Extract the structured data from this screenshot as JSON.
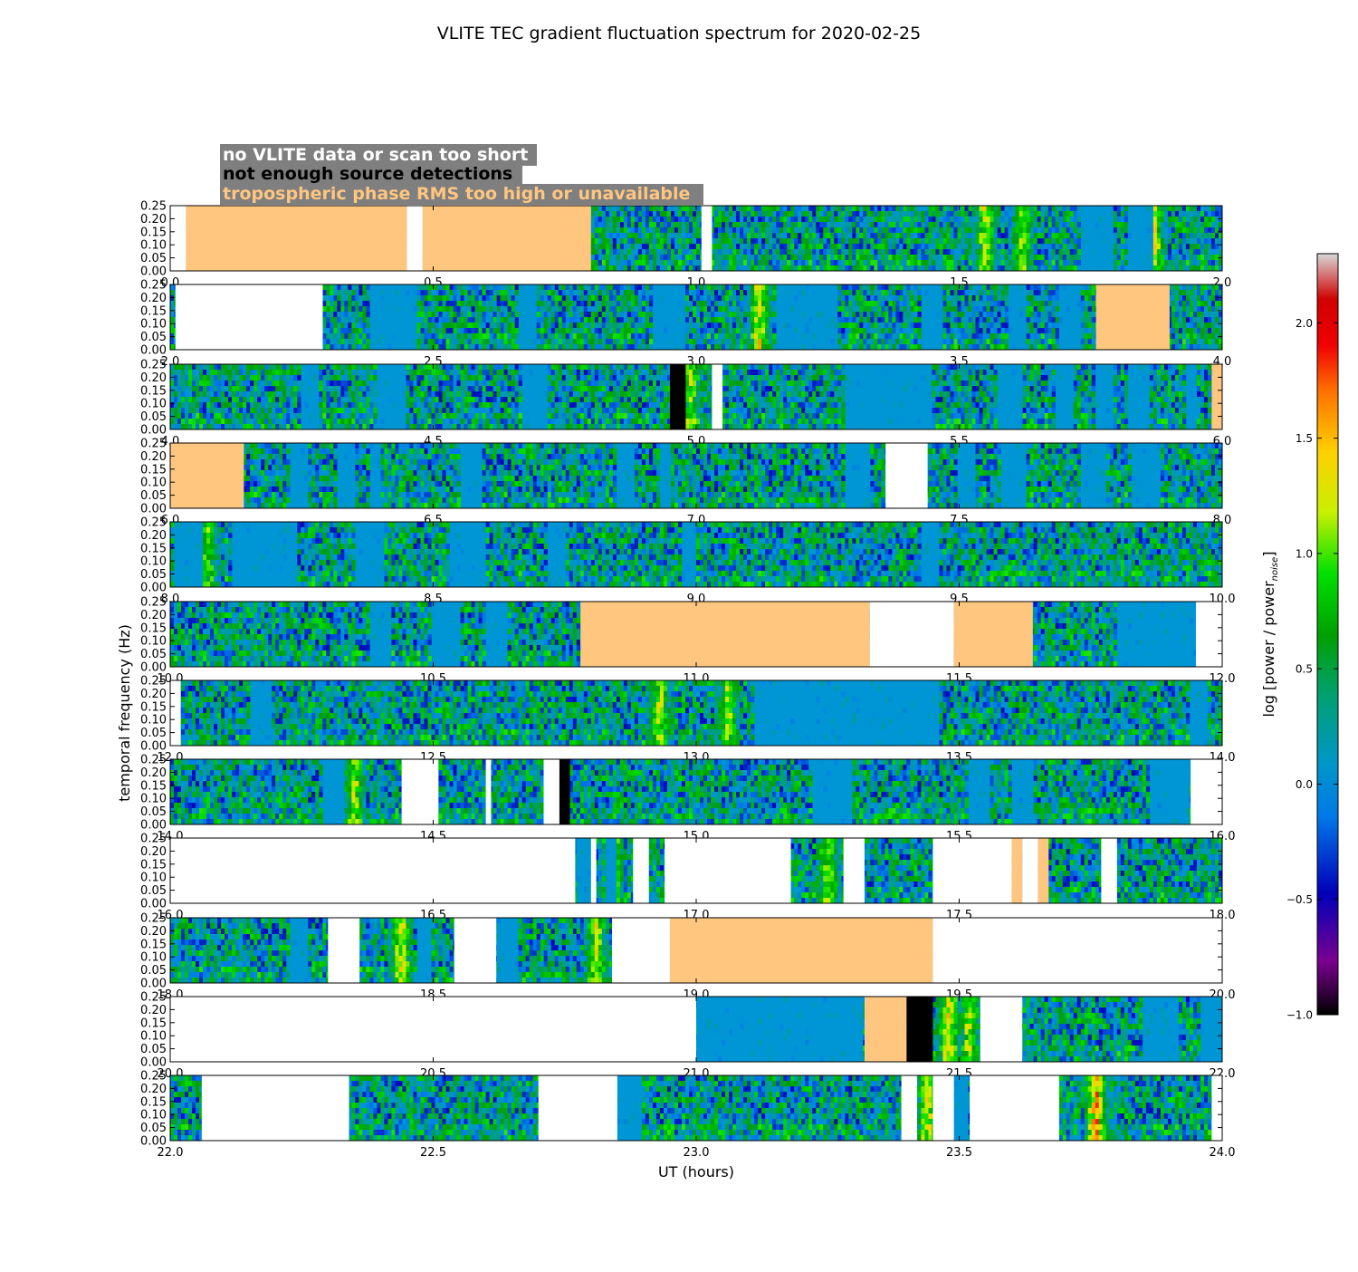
{
  "chart_data": {
    "type": "heatmap",
    "title": "VLITE TEC gradient fluctuation spectrum for 2020-02-25",
    "xlabel": "UT (hours)",
    "ylabel": "temporal frequency (Hz)",
    "ylim": [
      0,
      0.25
    ],
    "yticks": [
      "0.00",
      "0.05",
      "0.10",
      "0.15",
      "0.20",
      "0.25"
    ],
    "colorbar": {
      "label": "log [power / power_noise]",
      "range": [
        -1.0,
        2.3
      ],
      "ticks": [
        "−1.0",
        "−0.5",
        "0.0",
        "0.5",
        "1.0",
        "1.5",
        "2.0"
      ],
      "tick_values": [
        -1.0,
        -0.5,
        0.0,
        0.5,
        1.0,
        1.5,
        2.0
      ]
    },
    "legend": {
      "position": "top-left",
      "entries": [
        {
          "label": "no VLITE data or scan too short",
          "color": "#ffffff"
        },
        {
          "label": "not enough source detections",
          "color": "#000000"
        },
        {
          "label": "tropospheric phase RMS too high or unavailable",
          "color": "#ffc680"
        }
      ]
    },
    "colors": {
      "no_data": "#ffffff",
      "few_detections": "#000000",
      "tropo": "#ffc680",
      "baseline": "#0096d6",
      "legend_box": "#7f7f7f"
    },
    "panels": [
      {
        "xlim": [
          0,
          2
        ],
        "xticks": [
          "0.0",
          "0.5",
          "1.0",
          "1.5",
          "2.0"
        ],
        "tick_values": [
          0,
          0.5,
          1,
          1.5,
          2
        ],
        "flagged": [
          {
            "t": [
              0,
              0.03
            ],
            "kind": "no_data"
          },
          {
            "t": [
              0.03,
              0.45
            ],
            "kind": "tropo"
          },
          {
            "t": [
              0.45,
              0.48
            ],
            "kind": "no_data"
          },
          {
            "t": [
              0.48,
              0.8
            ],
            "kind": "tropo"
          },
          {
            "t": [
              1.01,
              1.03
            ],
            "kind": "no_data"
          }
        ],
        "quiet": [
          [
            1.73,
            1.79
          ],
          [
            1.82,
            1.87
          ]
        ],
        "hot": [
          [
            1.55,
            0.95
          ],
          [
            1.62,
            0.9
          ],
          [
            1.87,
            1.1
          ]
        ]
      },
      {
        "xlim": [
          2,
          4
        ],
        "xticks": [
          "2.0",
          "2.5",
          "3.0",
          "3.5",
          "4.0"
        ],
        "tick_values": [
          2,
          2.5,
          3,
          3.5,
          4
        ],
        "flagged": [
          {
            "t": [
              2.01,
              2.29
            ],
            "kind": "no_data"
          },
          {
            "t": [
              3.76,
              3.9
            ],
            "kind": "tropo"
          }
        ],
        "quiet": [
          [
            2.38,
            2.47
          ],
          [
            2.66,
            2.7
          ],
          [
            2.92,
            2.98
          ],
          [
            3.15,
            3.27
          ],
          [
            3.43,
            3.47
          ],
          [
            3.59,
            3.63
          ],
          [
            3.69,
            3.73
          ]
        ],
        "hot": [
          [
            3.12,
            1.05
          ]
        ]
      },
      {
        "xlim": [
          4,
          6
        ],
        "xticks": [
          "4.0",
          "4.5",
          "5.0",
          "5.5",
          "6.0"
        ],
        "tick_values": [
          4,
          4.5,
          5,
          5.5,
          6
        ],
        "flagged": [
          {
            "t": [
              4.95,
              4.98
            ],
            "kind": "few_detections"
          },
          {
            "t": [
              5.03,
              5.05
            ],
            "kind": "no_data"
          },
          {
            "t": [
              5.98,
              6.0
            ],
            "kind": "tropo"
          }
        ],
        "quiet": [
          [
            4.25,
            4.28
          ],
          [
            4.39,
            4.45
          ],
          [
            4.67,
            4.72
          ],
          [
            5.28,
            5.45
          ],
          [
            5.57,
            5.62
          ],
          [
            5.68,
            5.72
          ],
          [
            5.76,
            5.79
          ],
          [
            5.82,
            5.86
          ],
          [
            5.93,
            5.95
          ]
        ],
        "hot": [
          [
            4.99,
            0.95
          ]
        ]
      },
      {
        "xlim": [
          6,
          8
        ],
        "xticks": [
          "6.0",
          "6.5",
          "7.0",
          "7.5",
          "8.0"
        ],
        "tick_values": [
          6,
          6.5,
          7,
          7.5,
          8
        ],
        "flagged": [
          {
            "t": [
              6.0,
              6.14
            ],
            "kind": "tropo"
          },
          {
            "t": [
              7.36,
              7.44
            ],
            "kind": "no_data"
          }
        ],
        "quiet": [
          [
            6.23,
            6.26
          ],
          [
            6.32,
            6.35
          ],
          [
            6.38,
            6.4
          ],
          [
            6.55,
            6.59
          ],
          [
            6.85,
            6.88
          ],
          [
            6.93,
            6.95
          ],
          [
            7.28,
            7.33
          ],
          [
            7.5,
            7.53
          ],
          [
            7.58,
            7.63
          ],
          [
            7.73,
            7.78
          ],
          [
            7.83,
            7.88
          ]
        ],
        "hot": []
      },
      {
        "xlim": [
          8,
          10
        ],
        "xticks": [
          "8.0",
          "8.5",
          "9.0",
          "9.5",
          "10.0"
        ],
        "tick_values": [
          8,
          8.5,
          9,
          9.5,
          10
        ],
        "flagged": [],
        "quiet": [
          [
            8.01,
            8.06
          ],
          [
            8.12,
            8.24
          ],
          [
            8.35,
            8.41
          ],
          [
            8.53,
            8.6
          ],
          [
            8.72,
            8.75
          ],
          [
            8.97,
            9.0
          ],
          [
            9.43,
            9.46
          ]
        ],
        "hot": [
          [
            8.07,
            0.75
          ]
        ]
      },
      {
        "xlim": [
          10,
          12
        ],
        "xticks": [
          "10.0",
          "10.5",
          "11.0",
          "11.5",
          "12.0"
        ],
        "tick_values": [
          10,
          10.5,
          11,
          11.5,
          12
        ],
        "flagged": [
          {
            "t": [
              10.78,
              11.33
            ],
            "kind": "tropo"
          },
          {
            "t": [
              11.33,
              11.49
            ],
            "kind": "no_data"
          },
          {
            "t": [
              11.49,
              11.64
            ],
            "kind": "tropo"
          },
          {
            "t": [
              11.95,
              12.0
            ],
            "kind": "no_data"
          }
        ],
        "quiet": [
          [
            10.38,
            10.42
          ],
          [
            10.5,
            10.55
          ],
          [
            10.6,
            10.64
          ],
          [
            11.8,
            11.95
          ]
        ],
        "hot": []
      },
      {
        "xlim": [
          12,
          14
        ],
        "xticks": [
          "12.0",
          "12.5",
          "13.0",
          "13.5",
          "14.0"
        ],
        "tick_values": [
          12,
          12.5,
          13,
          13.5,
          14
        ],
        "flagged": [
          {
            "t": [
              12.0,
              12.02
            ],
            "kind": "no_data"
          }
        ],
        "quiet": [
          [
            12.15,
            12.19
          ],
          [
            13.11,
            13.46
          ],
          [
            13.94,
            13.97
          ]
        ],
        "hot": [
          [
            12.93,
            0.95
          ],
          [
            13.06,
            0.9
          ]
        ]
      },
      {
        "xlim": [
          14,
          16
        ],
        "xticks": [
          "14.0",
          "14.5",
          "15.0",
          "15.5",
          "16.0"
        ],
        "tick_values": [
          14,
          14.5,
          15,
          15.5,
          16
        ],
        "flagged": [
          {
            "t": [
              14.44,
              14.51
            ],
            "kind": "no_data"
          },
          {
            "t": [
              14.6,
              14.61
            ],
            "kind": "no_data"
          },
          {
            "t": [
              14.71,
              14.74
            ],
            "kind": "no_data"
          },
          {
            "t": [
              14.74,
              14.76
            ],
            "kind": "few_detections"
          },
          {
            "t": [
              15.94,
              16.0
            ],
            "kind": "no_data"
          }
        ],
        "quiet": [
          [
            14.29,
            14.33
          ],
          [
            15.22,
            15.3
          ],
          [
            15.52,
            15.56
          ],
          [
            15.6,
            15.64
          ],
          [
            15.86,
            15.94
          ]
        ],
        "hot": [
          [
            14.35,
            1.0
          ]
        ]
      },
      {
        "xlim": [
          16,
          18
        ],
        "xticks": [
          "16.0",
          "16.5",
          "17.0",
          "17.5",
          "18.0"
        ],
        "tick_values": [
          16,
          16.5,
          17,
          17.5,
          18
        ],
        "flagged": [
          {
            "t": [
              16.0,
              16.77
            ],
            "kind": "no_data"
          },
          {
            "t": [
              16.8,
              16.81
            ],
            "kind": "no_data"
          },
          {
            "t": [
              16.88,
              16.91
            ],
            "kind": "no_data"
          },
          {
            "t": [
              16.94,
              17.18
            ],
            "kind": "no_data"
          },
          {
            "t": [
              17.28,
              17.32
            ],
            "kind": "no_data"
          },
          {
            "t": [
              17.45,
              17.6
            ],
            "kind": "no_data"
          },
          {
            "t": [
              17.6,
              17.62
            ],
            "kind": "tropo"
          },
          {
            "t": [
              17.62,
              17.65
            ],
            "kind": "no_data"
          },
          {
            "t": [
              17.65,
              17.67
            ],
            "kind": "tropo"
          },
          {
            "t": [
              17.77,
              17.8
            ],
            "kind": "no_data"
          }
        ],
        "quiet": [
          [
            16.77,
            16.8
          ],
          [
            16.83,
            16.85
          ],
          [
            17.0,
            17.0
          ]
        ],
        "hot": [
          [
            16.84,
            1.15
          ],
          [
            17.25,
            0.9
          ]
        ]
      },
      {
        "xlim": [
          18,
          20
        ],
        "xticks": [
          "18.0",
          "18.5",
          "19.0",
          "19.5",
          "20.0"
        ],
        "tick_values": [
          18,
          18.5,
          19,
          19.5,
          20
        ],
        "flagged": [
          {
            "t": [
              18.3,
              18.36
            ],
            "kind": "no_data"
          },
          {
            "t": [
              18.54,
              18.62
            ],
            "kind": "no_data"
          },
          {
            "t": [
              18.84,
              18.95
            ],
            "kind": "no_data"
          },
          {
            "t": [
              18.95,
              19.45
            ],
            "kind": "tropo"
          },
          {
            "t": [
              19.45,
              20.0
            ],
            "kind": "no_data"
          }
        ],
        "quiet": [
          [
            18.23,
            18.26
          ],
          [
            18.47,
            18.5
          ],
          [
            18.62,
            18.66
          ]
        ],
        "hot": [
          [
            18.44,
            1.1
          ],
          [
            18.81,
            1.0
          ]
        ]
      },
      {
        "xlim": [
          20,
          22
        ],
        "xticks": [
          "20.0",
          "20.5",
          "21.0",
          "21.5",
          "22.0"
        ],
        "tick_values": [
          20,
          20.5,
          21,
          21.5,
          22
        ],
        "flagged": [
          {
            "t": [
              20.0,
              21.0
            ],
            "kind": "no_data"
          },
          {
            "t": [
              21.32,
              21.4
            ],
            "kind": "tropo"
          },
          {
            "t": [
              21.4,
              21.45
            ],
            "kind": "few_detections"
          },
          {
            "t": [
              21.54,
              21.62
            ],
            "kind": "no_data"
          }
        ],
        "quiet": [
          [
            21.0,
            21.32
          ],
          [
            21.85,
            21.92
          ],
          [
            21.96,
            22.0
          ]
        ],
        "hot": [
          [
            21.48,
            1.15
          ],
          [
            21.52,
            1.0
          ]
        ]
      },
      {
        "xlim": [
          22,
          24
        ],
        "xticks": [
          "22.0",
          "22.5",
          "23.0",
          "23.5",
          "24.0"
        ],
        "tick_values": [
          22,
          22.5,
          23,
          23.5,
          24
        ],
        "flagged": [
          {
            "t": [
              22.06,
              22.34
            ],
            "kind": "no_data"
          },
          {
            "t": [
              22.7,
              22.85
            ],
            "kind": "no_data"
          },
          {
            "t": [
              23.39,
              23.42
            ],
            "kind": "no_data"
          },
          {
            "t": [
              23.45,
              23.49
            ],
            "kind": "no_data"
          },
          {
            "t": [
              23.52,
              23.69
            ],
            "kind": "no_data"
          },
          {
            "t": [
              23.98,
              24.0
            ],
            "kind": "no_data"
          }
        ],
        "quiet": [
          [
            22.85,
            22.9
          ],
          [
            23.49,
            23.52
          ]
        ],
        "hot": [
          [
            23.44,
            1.1
          ],
          [
            23.76,
            1.6
          ]
        ]
      }
    ]
  }
}
